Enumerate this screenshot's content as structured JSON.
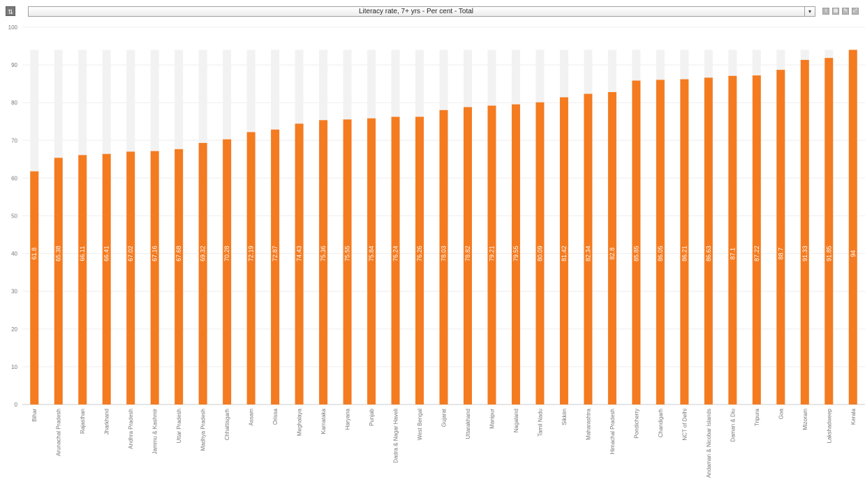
{
  "toolbar": {
    "sort_icon": "sort-icon",
    "selector_value": "Literacy rate, 7+ yrs - Per cent - Total",
    "dropdown_arrow": "▾",
    "tools": [
      {
        "name": "info-icon",
        "glyph": "i"
      },
      {
        "name": "table-icon",
        "glyph": "▦"
      },
      {
        "name": "edit-icon",
        "glyph": "✎"
      },
      {
        "name": "fullscreen-icon",
        "glyph": "⤢"
      }
    ]
  },
  "colors": {
    "bar": "#f47b20",
    "bar_background": "#f2f2f2",
    "grid": "#eeeeee",
    "axis": "#cccccc"
  },
  "chart_data": {
    "type": "bar",
    "title": "",
    "xlabel": "",
    "ylabel": "",
    "ylim": [
      0,
      100
    ],
    "yticks": [
      0,
      10,
      20,
      30,
      40,
      50,
      60,
      70,
      80,
      90,
      100
    ],
    "background_max": 94,
    "grid": true,
    "legend": "none",
    "categories": [
      "Bihar",
      "Arunachal Pradesh",
      "Rajasthan",
      "Jharkhand",
      "Andhra Pradesh",
      "Jammu & Kashmir",
      "Uttar Pradesh",
      "Madhya Pradesh",
      "Chhattisgarh",
      "Assam",
      "Orissa",
      "Meghalaya",
      "Karnataka",
      "Haryana",
      "Punjab",
      "Dadra & Nagar Haveli",
      "West Bengal",
      "Gujarat",
      "Uttarakhand",
      "Manipur",
      "Nagaland",
      "Tamil Nadu",
      "Sikkim",
      "Maharashtra",
      "Himachal Pradesh",
      "Pondicherry",
      "Chandigarh",
      "NCT of Delhi",
      "Andaman & Nicobar Islands",
      "Daman & Diu",
      "Tripura",
      "Goa",
      "Mizoram",
      "Lakshadweep",
      "Kerala"
    ],
    "values": [
      61.8,
      65.38,
      66.11,
      66.41,
      67.02,
      67.16,
      67.68,
      69.32,
      70.28,
      72.19,
      72.87,
      74.43,
      75.36,
      75.55,
      75.84,
      76.24,
      76.26,
      78.03,
      78.82,
      79.21,
      79.55,
      80.09,
      81.42,
      82.34,
      82.8,
      85.85,
      86.05,
      86.21,
      86.63,
      87.1,
      87.22,
      88.7,
      91.33,
      91.85,
      94
    ],
    "value_labels": [
      "61.8",
      "65.38",
      "66.11",
      "66.41",
      "67.02",
      "67.16",
      "67.68",
      "69.32",
      "70.28",
      "72.19",
      "72.87",
      "74.43",
      "75.36",
      "75.55",
      "75.84",
      "76.24",
      "76.26",
      "78.03",
      "78.82",
      "79.21",
      "79.55",
      "80.09",
      "81.42",
      "82.34",
      "82.8",
      "85.85",
      "86.05",
      "86.21",
      "86.63",
      "87.1",
      "87.22",
      "88.7",
      "91.33",
      "91.85",
      "94"
    ]
  }
}
